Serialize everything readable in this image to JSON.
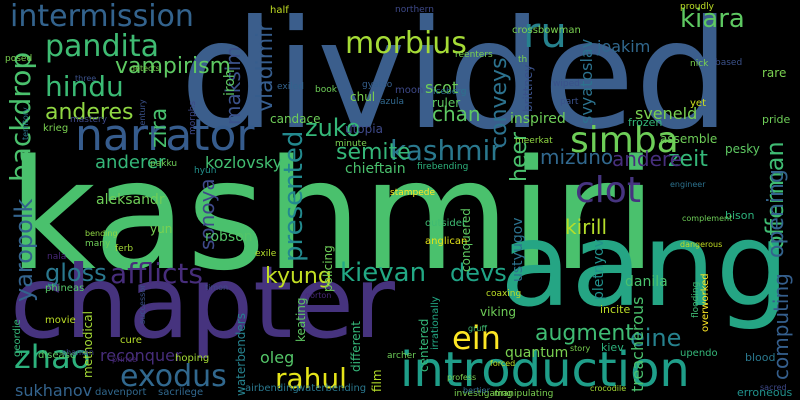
{
  "words": [
    {
      "text": "divided",
      "color": "#3b5e8c"
    },
    {
      "text": "kashmiri",
      "color": "#4ac16d"
    },
    {
      "text": "chapter",
      "color": "#46337e"
    },
    {
      "text": "aang",
      "color": "#25a584"
    },
    {
      "text": "introduction",
      "color": "#1f9e89"
    },
    {
      "text": "narrator",
      "color": "#365c8d"
    },
    {
      "text": "intermission",
      "color": "#33638d"
    },
    {
      "text": "pandita",
      "color": "#3fbc73"
    },
    {
      "text": "hindu",
      "color": "#3bbb75"
    },
    {
      "text": "vampirism",
      "color": "#5ec962"
    },
    {
      "text": "anderes",
      "color": "#90d743"
    },
    {
      "text": "backdrop",
      "color": "#4ac16d"
    },
    {
      "text": "yaropolk",
      "color": "#33638d"
    },
    {
      "text": "gloss",
      "color": "#2a788e"
    },
    {
      "text": "afflicts",
      "color": "#472d7b"
    },
    {
      "text": "zhao",
      "color": "#2db27d"
    },
    {
      "text": "exodus",
      "color": "#31688e"
    },
    {
      "text": "rahul",
      "color": "#e5e419"
    },
    {
      "text": "morbius",
      "color": "#a5db36"
    },
    {
      "text": "ru",
      "color": "#26828e"
    },
    {
      "text": "kiara",
      "color": "#5ec962"
    },
    {
      "text": "simba",
      "color": "#6ece58"
    },
    {
      "text": "kashmir",
      "color": "#2a788e"
    },
    {
      "text": "zuko",
      "color": "#35b779"
    },
    {
      "text": "semite",
      "color": "#35b779"
    },
    {
      "text": "conveys",
      "color": "#2c728e"
    },
    {
      "text": "heer",
      "color": "#4ac16d"
    },
    {
      "text": "zeit",
      "color": "#35b779"
    },
    {
      "text": "offerman",
      "color": "#3fbc73"
    },
    {
      "text": "opening",
      "color": "#33638d"
    },
    {
      "text": "computing",
      "color": "#355f8d"
    },
    {
      "text": "kievan",
      "color": "#22a884"
    },
    {
      "text": "devs",
      "color": "#20a486"
    },
    {
      "text": "kyung",
      "color": "#c2df23"
    },
    {
      "text": "presented",
      "color": "#23898e"
    },
    {
      "text": "sonoya",
      "color": "#3e4989"
    },
    {
      "text": "zira",
      "color": "#48c16e"
    },
    {
      "text": "maksim",
      "color": "#3b528b"
    },
    {
      "text": "vladimir",
      "color": "#365d8d"
    },
    {
      "text": "clot",
      "color": "#463480"
    },
    {
      "text": "mizuno",
      "color": "#31688e"
    },
    {
      "text": "andere",
      "color": "#472f7d"
    },
    {
      "text": "kirill",
      "color": "#b5de2b"
    },
    {
      "text": "ein",
      "color": "#fde725"
    },
    {
      "text": "eine",
      "color": "#26828e"
    },
    {
      "text": "augment",
      "color": "#3fbc73"
    },
    {
      "text": "anderer",
      "color": "#35b779"
    },
    {
      "text": "kozlovsky",
      "color": "#42be71"
    },
    {
      "text": "aleksandr",
      "color": "#6ece58"
    },
    {
      "text": "robson",
      "color": "#54c568"
    },
    {
      "text": "chan",
      "color": "#5ec962"
    },
    {
      "text": "scot",
      "color": "#6ece58"
    },
    {
      "text": "sveneld",
      "color": "#7ad151"
    },
    {
      "text": "joakim",
      "color": "#31688e"
    },
    {
      "text": "svyatoslav",
      "color": "#2c728e"
    },
    {
      "text": "reconquer",
      "color": "#472d7b"
    },
    {
      "text": "sukhanov",
      "color": "#33638d"
    },
    {
      "text": "oleg",
      "color": "#54c568"
    },
    {
      "text": "quantum",
      "color": "#7ad151"
    },
    {
      "text": "danila",
      "color": "#4ac16d"
    },
    {
      "text": "pletnyov",
      "color": "#21918c"
    },
    {
      "text": "treacherous",
      "color": "#4ac16d"
    },
    {
      "text": "ustyugov",
      "color": "#2c728e"
    },
    {
      "text": "brittney",
      "color": "#3b528b"
    },
    {
      "text": "iroh",
      "color": "#5ec962"
    },
    {
      "text": "chul",
      "color": "#7ad151"
    },
    {
      "text": "utopia",
      "color": "#3e4989"
    },
    {
      "text": "candace",
      "color": "#6ece58"
    },
    {
      "text": "inspired",
      "color": "#6ece58"
    },
    {
      "text": "ruler",
      "color": "#5ec962"
    },
    {
      "text": "chieftain",
      "color": "#4ac16d"
    },
    {
      "text": "viking",
      "color": "#6ece58"
    },
    {
      "text": "yun",
      "color": "#7ad151"
    },
    {
      "text": "film",
      "color": "#b5de2b"
    },
    {
      "text": "policing",
      "color": "#6ece58"
    },
    {
      "text": "conquered",
      "color": "#5ec962"
    },
    {
      "text": "centered",
      "color": "#35b779"
    },
    {
      "text": "different",
      "color": "#35b779"
    },
    {
      "text": "keating",
      "color": "#5ec962"
    },
    {
      "text": "methodical",
      "color": "#a5db36"
    },
    {
      "text": "waterbenders",
      "color": "#26828e"
    },
    {
      "text": "airbending",
      "color": "#2a788e"
    },
    {
      "text": "waterbending",
      "color": "#2a788e"
    },
    {
      "text": "davenport",
      "color": "#31688e"
    },
    {
      "text": "sacrilege",
      "color": "#31688e"
    },
    {
      "text": "hoping",
      "color": "#a5db36"
    },
    {
      "text": "cure",
      "color": "#b5de2b"
    },
    {
      "text": "krieg",
      "color": "#7ad151"
    },
    {
      "text": "moon",
      "color": "#3e4989"
    },
    {
      "text": "northern",
      "color": "#3e4989"
    },
    {
      "text": "disease",
      "color": "#5ec962"
    },
    {
      "text": "geordie",
      "color": "#35b779"
    },
    {
      "text": "phineas",
      "color": "#54c568"
    },
    {
      "text": "movie",
      "color": "#bddf26"
    },
    {
      "text": "pesky",
      "color": "#5ec962"
    },
    {
      "text": "bison",
      "color": "#2db27d"
    },
    {
      "text": "erroneous",
      "color": "#21918c"
    },
    {
      "text": "blood",
      "color": "#2a788e"
    },
    {
      "text": "upendo",
      "color": "#35b779"
    },
    {
      "text": "incite",
      "color": "#bddf26"
    },
    {
      "text": "kiev",
      "color": "#2db27d"
    },
    {
      "text": "frozen",
      "color": "#35b779"
    },
    {
      "text": "assemble",
      "color": "#6ece58"
    },
    {
      "text": "rare",
      "color": "#7ad151"
    },
    {
      "text": "pride",
      "color": "#6ece58"
    },
    {
      "text": "yet",
      "color": "#cde11d"
    },
    {
      "text": "crossbowman",
      "color": "#7ad151"
    },
    {
      "text": "gyatso",
      "color": "#355f8d"
    },
    {
      "text": "azula",
      "color": "#31688e"
    },
    {
      "text": "iceberg",
      "color": "#2c728e"
    },
    {
      "text": "book",
      "color": "#6ece58"
    },
    {
      "text": "ferb",
      "color": "#a5db36"
    },
    {
      "text": "exile",
      "color": "#b5de2b"
    },
    {
      "text": "anglican",
      "color": "#e5e419"
    },
    {
      "text": "outsider",
      "color": "#3fbc73"
    },
    {
      "text": "irrationally",
      "color": "#22a884"
    },
    {
      "text": "firebending",
      "color": "#2db27d"
    },
    {
      "text": "minute",
      "color": "#7ad151"
    },
    {
      "text": "meerkat",
      "color": "#90d743"
    },
    {
      "text": "mastery",
      "color": "#3e4989"
    },
    {
      "text": "posed",
      "color": "#7ad151"
    },
    {
      "text": "half",
      "color": "#c2df23"
    },
    {
      "text": "proudly",
      "color": "#bddf26"
    },
    {
      "text": "nick",
      "color": "#7ad151"
    },
    {
      "text": "wiped",
      "color": "#3b528b"
    },
    {
      "text": "part",
      "color": "#3b528b"
    },
    {
      "text": "th",
      "color": "#7ad151"
    },
    {
      "text": "reenters",
      "color": "#7ad151"
    },
    {
      "text": "based",
      "color": "#3b528b"
    },
    {
      "text": "pakku",
      "color": "#6ece58"
    },
    {
      "text": "hyun",
      "color": "#21918c"
    },
    {
      "text": "nala",
      "color": "#482878"
    },
    {
      "text": "many",
      "color": "#6ece58"
    },
    {
      "text": "bending",
      "color": "#90d743"
    },
    {
      "text": "exiled",
      "color": "#33638d"
    },
    {
      "text": "detects",
      "color": "#7ad151"
    },
    {
      "text": "three",
      "color": "#3b528b"
    },
    {
      "text": "morphs",
      "color": "#3e4989"
    },
    {
      "text": "century",
      "color": "#3b528b"
    },
    {
      "text": "territory",
      "color": "#2a788e"
    },
    {
      "text": "investigating",
      "color": "#7ad151"
    },
    {
      "text": "manipulating",
      "color": "#7ad151"
    },
    {
      "text": "profess",
      "color": "#7ad151"
    },
    {
      "text": "crocodile",
      "color": "#a5db36"
    },
    {
      "text": "story",
      "color": "#7ad151"
    },
    {
      "text": "sacred",
      "color": "#3e4989"
    },
    {
      "text": "flooding",
      "color": "#3fbc73"
    },
    {
      "text": "overworked",
      "color": "#fde725"
    },
    {
      "text": "archer",
      "color": "#6ece58"
    },
    {
      "text": "forced",
      "color": "#bddf26"
    },
    {
      "text": "prince",
      "color": "#482878"
    },
    {
      "text": "shaman",
      "color": "#3e4989"
    },
    {
      "text": "successor",
      "color": "#3b528b"
    },
    {
      "text": "timon",
      "color": "#3e4989"
    },
    {
      "text": "norton",
      "color": "#482878"
    },
    {
      "text": "bertier",
      "color": "#31688e"
    },
    {
      "text": "dangerous",
      "color": "#c2df23"
    },
    {
      "text": "engineer",
      "color": "#2c728e"
    },
    {
      "text": "complement",
      "color": "#6ece58"
    },
    {
      "text": "coaxing",
      "color": "#bddf26"
    },
    {
      "text": "gruff",
      "color": "#3fbc73"
    },
    {
      "text": "stampede",
      "color": "#fde725"
    },
    {
      "text": "mandrill",
      "color": "#3fbc73"
    }
  ]
}
